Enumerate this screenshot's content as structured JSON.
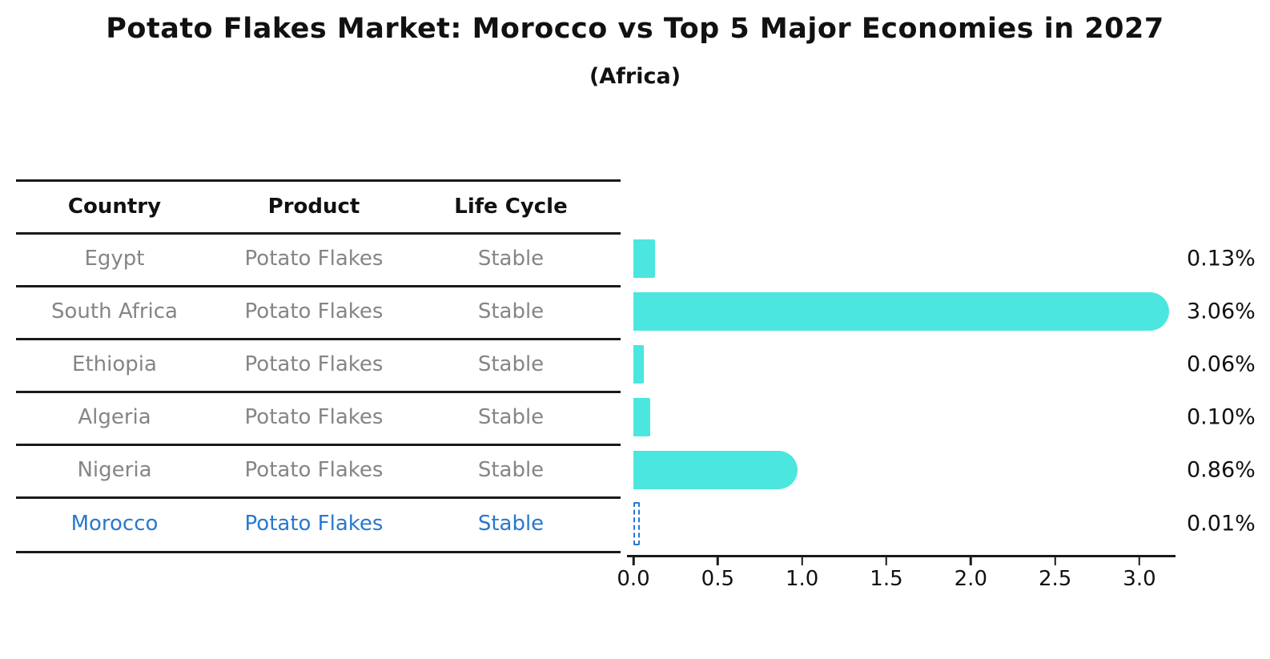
{
  "header": {
    "title": "Potato Flakes Market: Morocco vs Top 5 Major Economies in 2027",
    "subtitle": "(Africa)"
  },
  "table": {
    "headers": [
      "Country",
      "Product",
      "Life Cycle"
    ],
    "rows": [
      {
        "country": "Egypt",
        "product": "Potato Flakes",
        "life_cycle": "Stable",
        "highlight": false
      },
      {
        "country": "South Africa",
        "product": "Potato Flakes",
        "life_cycle": "Stable",
        "highlight": false
      },
      {
        "country": "Ethiopia",
        "product": "Potato Flakes",
        "life_cycle": "Stable",
        "highlight": false
      },
      {
        "country": "Algeria",
        "product": "Potato Flakes",
        "life_cycle": "Stable",
        "highlight": false
      },
      {
        "country": "Nigeria",
        "product": "Potato Flakes",
        "life_cycle": "Stable",
        "highlight": true
      }
    ],
    "highlight_row": {
      "country": "Morocco",
      "product": "Potato Flakes",
      "life_cycle": "Stable"
    }
  },
  "chart_data": {
    "type": "bar",
    "orientation": "horizontal",
    "title": "Potato Flakes Market: Morocco vs Top 5 Major Economies in 2027",
    "subtitle": "(Africa)",
    "categories": [
      "Egypt",
      "South Africa",
      "Ethiopia",
      "Algeria",
      "Nigeria",
      "Morocco"
    ],
    "values": [
      0.13,
      3.06,
      0.06,
      0.1,
      0.86,
      0.01
    ],
    "value_labels": [
      "0.13%",
      "3.06%",
      "0.06%",
      "0.10%",
      "0.86%",
      "0.01%"
    ],
    "x_tick_labels": [
      "0.0",
      "0.5",
      "1.0",
      "1.5",
      "2.0",
      "2.5",
      "3.0"
    ],
    "xlim": [
      0.0,
      3.3
    ],
    "xlabel": "",
    "ylabel": "",
    "grid": false,
    "legend": false,
    "bar_color": "#4BE6DE",
    "highlight_color": "#2878CE",
    "highlight_index": 5,
    "highlight_style": "dashed-outline"
  },
  "colors": {
    "bar": "#4BE6DE",
    "highlight": "#2878CE",
    "row_text": "#858585",
    "header_text": "#111111",
    "line": "#1a1a1a",
    "background": "#ffffff"
  }
}
